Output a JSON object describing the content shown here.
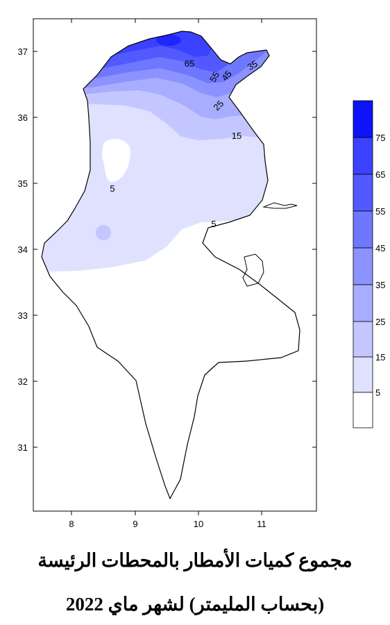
{
  "map": {
    "x_ticks": [
      "8",
      "9",
      "10",
      "11"
    ],
    "y_ticks": [
      "37",
      "36",
      "35",
      "34",
      "33",
      "32",
      "31"
    ],
    "contour_labels": [
      "65",
      "55",
      "45",
      "35",
      "25",
      "15",
      "5",
      "5"
    ],
    "colors": {
      "lt5": "#ffffff",
      "c5": "#dfe1ff",
      "c15": "#c4c7ff",
      "c25": "#a9adff",
      "c35": "#8c92ff",
      "c45": "#6f77ff",
      "c55": "#5259ff",
      "c65": "#3a42ff",
      "c75": "#1f26ff",
      "border": "#000000"
    }
  },
  "legend": {
    "levels": [
      "75",
      "65",
      "55",
      "45",
      "35",
      "25",
      "15",
      "5"
    ],
    "colors": [
      "#0d14f8",
      "#3a42ff",
      "#5259ff",
      "#6f77ff",
      "#8c92ff",
      "#a9adff",
      "#c4c7ff",
      "#dfe1ff",
      "#ffffff"
    ]
  },
  "caption": {
    "title": "مجموع كميات الأمطار بالمحطات الرئيسة",
    "subtitle": "(بحساب المليمتر)  لشهر ماي 2022"
  }
}
